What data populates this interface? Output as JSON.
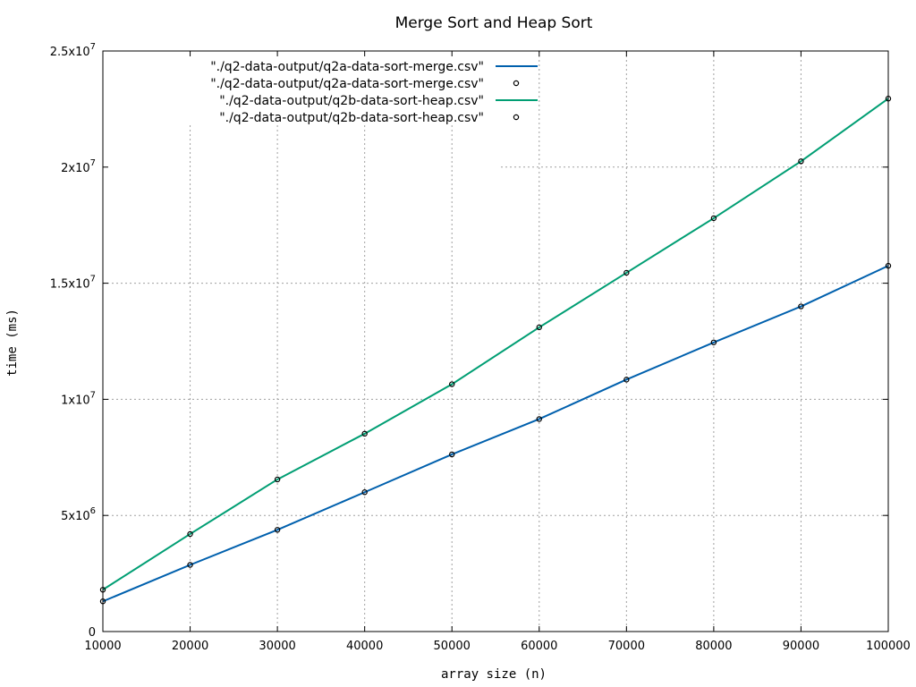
{
  "chart_data": {
    "type": "line",
    "title": "Merge Sort and Heap Sort",
    "xlabel": "array size (n)",
    "ylabel": "time (ms)",
    "xlim": [
      10000,
      100000
    ],
    "ylim": [
      0,
      25000000
    ],
    "x_ticks": [
      "10000",
      "20000",
      "30000",
      "40000",
      "50000",
      "60000",
      "70000",
      "80000",
      "90000",
      "100000"
    ],
    "y_ticks": [
      {
        "value": 0,
        "mantissa": "0",
        "exponent": ""
      },
      {
        "value": 5000000,
        "mantissa": "5x10",
        "exponent": "6"
      },
      {
        "value": 10000000,
        "mantissa": "1x10",
        "exponent": "7"
      },
      {
        "value": 15000000,
        "mantissa": "1.5x10",
        "exponent": "7"
      },
      {
        "value": 20000000,
        "mantissa": "2x10",
        "exponent": "7"
      },
      {
        "value": 25000000,
        "mantissa": "2.5x10",
        "exponent": "7"
      }
    ],
    "grid": true,
    "legend_position": "top",
    "x": [
      10000,
      20000,
      30000,
      40000,
      50000,
      60000,
      70000,
      80000,
      90000,
      100000
    ],
    "series": [
      {
        "name": "\"./q2-data-output/q2a-data-sort-merge.csv\"",
        "style": "line",
        "color": "#0060ad",
        "values": [
          1300000,
          2870000,
          4380000,
          6000000,
          7630000,
          9150000,
          10850000,
          12450000,
          14000000,
          15750000
        ]
      },
      {
        "name": "\"./q2-data-output/q2a-data-sort-merge.csv\"",
        "style": "points",
        "color": "#000000",
        "values": [
          1300000,
          2870000,
          4380000,
          6000000,
          7630000,
          9150000,
          10850000,
          12450000,
          14000000,
          15750000
        ]
      },
      {
        "name": "\"./q2-data-output/q2b-data-sort-heap.csv\"",
        "style": "line",
        "color": "#009e73",
        "values": [
          1800000,
          4200000,
          6550000,
          8520000,
          10650000,
          13100000,
          15450000,
          17800000,
          20250000,
          22950000
        ]
      },
      {
        "name": "\"./q2-data-output/q2b-data-sort-heap.csv\"",
        "style": "points",
        "color": "#000000",
        "values": [
          1800000,
          4200000,
          6550000,
          8520000,
          10650000,
          13100000,
          15450000,
          17800000,
          20250000,
          22950000
        ]
      }
    ]
  }
}
